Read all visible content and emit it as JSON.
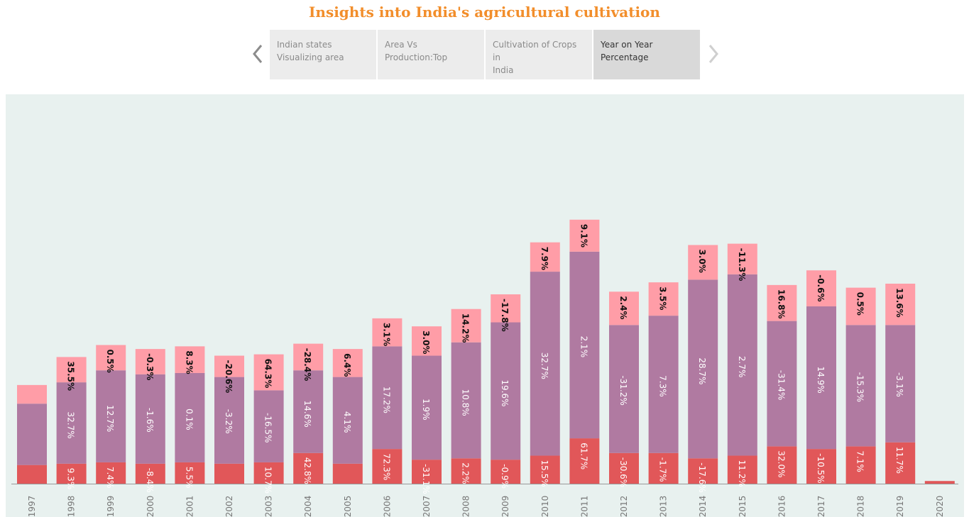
{
  "title": "Insights into India's agricultural cultivation",
  "nav": {
    "prev_icon": "chevron-left-icon",
    "next_icon": "chevron-right-icon",
    "tabs": [
      {
        "line1": "Indian states",
        "line2": "Visualizing area",
        "active": false
      },
      {
        "line1": "Area Vs",
        "line2": "Production:Top",
        "active": false
      },
      {
        "line1": "Cultivation of Crops in",
        "line2": "India",
        "active": false
      },
      {
        "line1": "Year on Year",
        "line2": "Percentage",
        "active": true
      }
    ]
  },
  "colors": {
    "bottom": "#e15759",
    "middle": "#b07aa1",
    "top": "#ff9da7",
    "background": "#e8f1ef"
  },
  "chart_data": {
    "type": "bar",
    "stacked": true,
    "categories": [
      "1997",
      "1998",
      "1999",
      "2000",
      "2001",
      "2002",
      "2003",
      "2004",
      "2005",
      "2006",
      "2007",
      "2008",
      "2009",
      "2010",
      "2011",
      "2012",
      "2013",
      "2014",
      "2015",
      "2016",
      "2017",
      "2018",
      "2019",
      "2020"
    ],
    "series": [
      {
        "stack_values": [
          14,
          15,
          16,
          15,
          16,
          15,
          16,
          23,
          15,
          26,
          18,
          19,
          18,
          21,
          34,
          23,
          23,
          19,
          21,
          28,
          26,
          28,
          31,
          2
        ],
        "labels": [
          "",
          "9.3%",
          "7.4%",
          "-8.4%",
          "5.5%",
          "",
          "10.7%",
          "42.8%",
          "",
          "72.3%",
          "-31.1%",
          "2.2%",
          "-0.9%",
          "15.5%",
          "61.7%",
          "-30.6%",
          "-1.7%",
          "-17.6%",
          "11.2%",
          "32.0%",
          "-10.5%",
          "7.1%",
          "11.7%",
          ""
        ]
      },
      {
        "stack_values": [
          46,
          61,
          69,
          67,
          67,
          65,
          54,
          62,
          65,
          77,
          78,
          87,
          103,
          138,
          140,
          96,
          103,
          134,
          136,
          94,
          107,
          91,
          88,
          0
        ],
        "labels": [
          "",
          "32.7%",
          "12.7%",
          "-1.6%",
          "0.1%",
          "-3.2%",
          "-16.5%",
          "14.6%",
          "4.1%",
          "17.2%",
          "1.9%",
          "10.8%",
          "19.6%",
          "32.7%",
          "2.1%",
          "-31.2%",
          "7.3%",
          "28.7%",
          "2.7%",
          "-31.4%",
          "14.9%",
          "-15.3%",
          "-3.1%",
          ""
        ]
      },
      {
        "stack_values": [
          14,
          19,
          19,
          19,
          20,
          16,
          27,
          20,
          21,
          21,
          22,
          25,
          21,
          22,
          24,
          25,
          25,
          26,
          23,
          27,
          27,
          28,
          31,
          0
        ],
        "labels": [
          "",
          "35.5%",
          "0.5%",
          "-0.3%",
          "8.3%",
          "-20.6%",
          "64.3%",
          "-28.4%",
          "6.4%",
          "3.1%",
          "3.0%",
          "14.2%",
          "-17.8%",
          "7.9%",
          "9.1%",
          "2.4%",
          "3.5%",
          "3.0%",
          "-11.3%",
          "16.8%",
          "-0.6%",
          "0.5%",
          "13.6%",
          ""
        ]
      }
    ]
  }
}
